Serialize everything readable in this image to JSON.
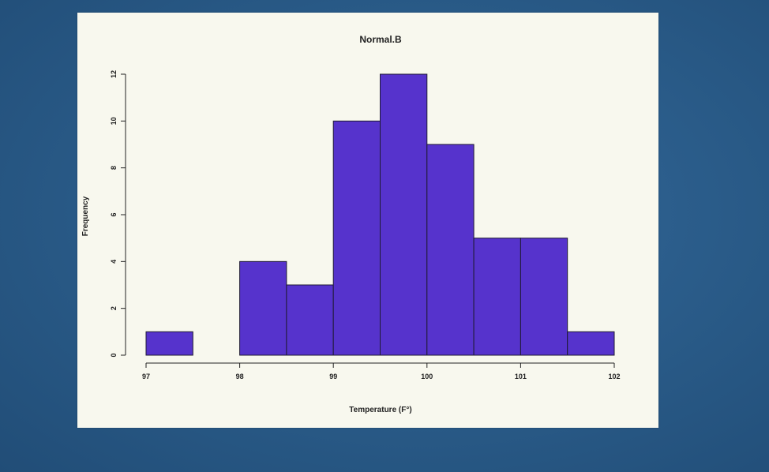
{
  "colors": {
    "background": "#2b5f8c",
    "panel": "#f8f8ee",
    "bar_fill": "#5633cc",
    "bar_stroke": "#1f1a33",
    "axis": "#222222"
  },
  "chart_data": {
    "type": "bar",
    "title": "Normal.B",
    "xlabel": "Temperature (F°)",
    "ylabel": "Frequency",
    "bin_edges": [
      97,
      97.5,
      98,
      98.5,
      99,
      99.5,
      100,
      100.5,
      101,
      101.5,
      102
    ],
    "values": [
      1,
      0,
      4,
      3,
      10,
      12,
      9,
      5,
      5,
      1
    ],
    "xlim": [
      97,
      102
    ],
    "ylim": [
      0,
      12
    ],
    "x_ticks": [
      "97",
      "98",
      "99",
      "100",
      "101",
      "102"
    ],
    "y_ticks": [
      "0",
      "2",
      "4",
      "6",
      "8",
      "10",
      "12"
    ],
    "grid": false,
    "legend": "none"
  }
}
